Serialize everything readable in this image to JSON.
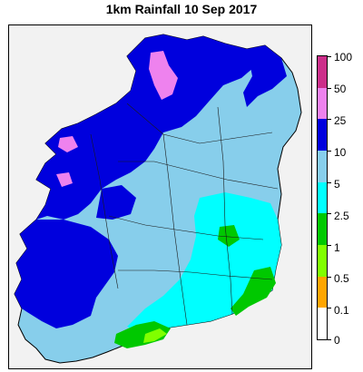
{
  "title": "1km Rainfall 10 Sep 2017",
  "legend": {
    "ticks": [
      "100",
      "50",
      "25",
      "10",
      "5",
      "2.5",
      "1",
      "0.5",
      "0.1",
      "0"
    ],
    "bands": [
      {
        "label": "50-100",
        "color": "#cc2e8a"
      },
      {
        "label": "25-50",
        "color": "#ee82ee"
      },
      {
        "label": "10-25",
        "color": "#0000dd"
      },
      {
        "label": "5-10",
        "color": "#87ceeb"
      },
      {
        "label": "2.5-5",
        "color": "#00ffff"
      },
      {
        "label": "1-2.5",
        "color": "#00c800"
      },
      {
        "label": "0.5-1",
        "color": "#80ff00"
      },
      {
        "label": "0.1-0.5",
        "color": "#ffa500"
      },
      {
        "label": "0-0.1",
        "color": "#ffffff"
      }
    ]
  },
  "colors": {
    "background": "#f2f2f2",
    "border": "#000000"
  }
}
